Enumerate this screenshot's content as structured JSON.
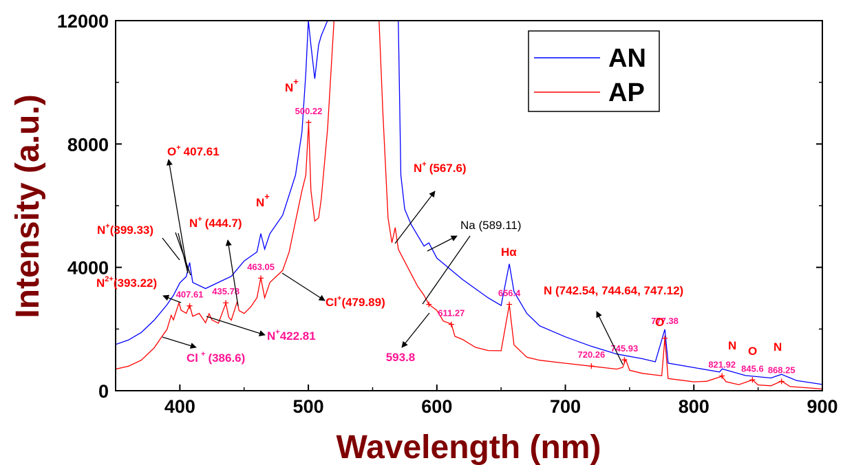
{
  "chart_data": {
    "type": "line",
    "xlabel": "Wavelength (nm)",
    "ylabel": "Intensity (a.u.)",
    "xlim": [
      350,
      900
    ],
    "ylim": [
      0,
      12000
    ],
    "xticks": [
      "400",
      "500",
      "600",
      "700",
      "800",
      "900"
    ],
    "yticks": [
      "0",
      "4000",
      "8000",
      "12000"
    ],
    "legend_position": "top-right",
    "colors": {
      "AN": "#0000ff",
      "AP": "#ff0000",
      "annot_red": "#ff0000",
      "annot_pink": "#ff1493",
      "axis_title": "#7f0000"
    },
    "series": [
      {
        "name": "AN",
        "x": [
          350,
          360,
          370,
          375,
          380,
          390,
          395,
          400,
          405,
          407.6,
          410,
          420,
          430,
          440,
          450,
          460,
          463,
          466,
          470,
          480,
          490,
          495,
          498,
          500,
          502,
          505,
          508,
          510,
          515,
          520,
          560,
          570,
          572,
          575,
          580,
          590,
          593.8,
          600,
          620,
          640,
          650,
          656.4,
          660,
          670,
          680,
          700,
          720,
          740,
          760,
          770,
          777.4,
          780,
          800,
          820,
          822,
          840,
          860,
          868.2,
          880,
          900
        ],
        "y": [
          1500,
          1650,
          1900,
          2100,
          2300,
          2800,
          3100,
          3500,
          3700,
          4150,
          3500,
          3300,
          3500,
          3700,
          4200,
          4500,
          5100,
          4600,
          5100,
          5700,
          7000,
          8400,
          10300,
          12000,
          11200,
          10100,
          11200,
          11500,
          12000,
          12000,
          12000,
          12000,
          7000,
          5900,
          5400,
          4700,
          4800,
          4300,
          3600,
          3000,
          2750,
          4100,
          3200,
          2500,
          2100,
          1750,
          1450,
          1200,
          1050,
          950,
          2000,
          900,
          750,
          600,
          700,
          480,
          400,
          520,
          320,
          200
        ]
      },
      {
        "name": "AP",
        "x": [
          350,
          360,
          370,
          380,
          386.6,
          390,
          393.2,
          395,
          399.3,
          401,
          405,
          407.6,
          410,
          415,
          420,
          422.8,
          425,
          430,
          435.8,
          438,
          440,
          444.7,
          446,
          450,
          455,
          460,
          463,
          466,
          470,
          475,
          480,
          485,
          490,
          495,
          498,
          500.2,
          502,
          505,
          508,
          510,
          515,
          520,
          555,
          558,
          562,
          565,
          567.6,
          570,
          575,
          580,
          585,
          590,
          593.8,
          600,
          605,
          611.3,
          614,
          620,
          630,
          640,
          650,
          656.4,
          660,
          670,
          680,
          700,
          720,
          740,
          744.6,
          747,
          750,
          760,
          770,
          775,
          777.4,
          780,
          790,
          800,
          810,
          821.9,
          825,
          835,
          845.6,
          850,
          860,
          868.2,
          875,
          890,
          900
        ],
        "y": [
          700,
          800,
          1000,
          1400,
          1800,
          2000,
          2450,
          2300,
          2850,
          2600,
          2500,
          2750,
          2400,
          2500,
          2200,
          2500,
          2300,
          2200,
          2850,
          2400,
          2300,
          2900,
          2600,
          2500,
          2700,
          3000,
          3650,
          3000,
          3500,
          3700,
          3900,
          4500,
          5500,
          6500,
          7000,
          8700,
          6500,
          5500,
          5600,
          6200,
          8500,
          12000,
          12000,
          9000,
          5600,
          4800,
          5300,
          4600,
          4200,
          3800,
          3400,
          3100,
          2800,
          2600,
          2250,
          2150,
          1750,
          1650,
          1400,
          1300,
          1300,
          2800,
          1500,
          1100,
          1000,
          900,
          800,
          700,
          750,
          1000,
          650,
          550,
          500,
          480,
          1700,
          400,
          350,
          300,
          320,
          480,
          300,
          200,
          350,
          180,
          150,
          300,
          120,
          80,
          50
        ]
      }
    ],
    "peak_markers": [
      {
        "x": 407.61,
        "y": 2750,
        "label": "407.61"
      },
      {
        "x": 435.78,
        "y": 2850,
        "label": "435.78"
      },
      {
        "x": 463.05,
        "y": 3650,
        "label": "463.05"
      },
      {
        "x": 500.22,
        "y": 8700,
        "label": "500.22"
      },
      {
        "x": 593.8,
        "y": 2800,
        "label": "593.8"
      },
      {
        "x": 611.27,
        "y": 2150,
        "label": "611.27"
      },
      {
        "x": 656.4,
        "y": 2800,
        "label": "656.4"
      },
      {
        "x": 720.26,
        "y": 800,
        "label": "720.26"
      },
      {
        "x": 745.93,
        "y": 1000,
        "label": "745.93"
      },
      {
        "x": 777.38,
        "y": 1700,
        "label": "777.38"
      },
      {
        "x": 821.92,
        "y": 480,
        "label": "821.92"
      },
      {
        "x": 845.6,
        "y": 350,
        "label": "845.6"
      },
      {
        "x": 868.25,
        "y": 300,
        "label": "868.25"
      }
    ]
  },
  "legend": {
    "an": "AN",
    "ap": "AP"
  },
  "annotations": {
    "o_plus": "O",
    "o_plus_sup": "+",
    "o_plus_val": "407.61",
    "n_plus_39933": "N",
    "n_plus_39933_sup": "+",
    "n_plus_39933_val": "(399.33)",
    "n2_plus": "N",
    "n2_plus_sup": "2+",
    "n2_plus_val": "(393.22)",
    "n_plus_4447": "N",
    "n_plus_4447_sup": "+",
    "n_plus_4447_val": "(444.7)",
    "n_plus_peak1": "N",
    "n_plus_peak1_sup": "+",
    "n_plus_peak2": "N",
    "n_plus_peak2_sup": "+",
    "n_plus_5676": "N",
    "n_plus_5676_sup": "+",
    "n_plus_5676_val": "(567.6)",
    "na": "Na (589.11)",
    "h_alpha": "Hα",
    "n_triplet": "N (742.54, 744.64, 747.12)",
    "o_777": "O",
    "n_821": "N",
    "o_845": "O",
    "n_868": "N",
    "cl_plus_4799": "Cl",
    "cl_plus_4799_sup": "+",
    "cl_plus_4799_val": "(479.89)",
    "n_plus_4228": "N",
    "n_plus_4228_sup": "+",
    "n_plus_4228_val": "422.81",
    "cl_plus_3866": "Cl",
    "cl_plus_3866_sup": "+",
    "cl_plus_3866_val": "(386.6)"
  }
}
